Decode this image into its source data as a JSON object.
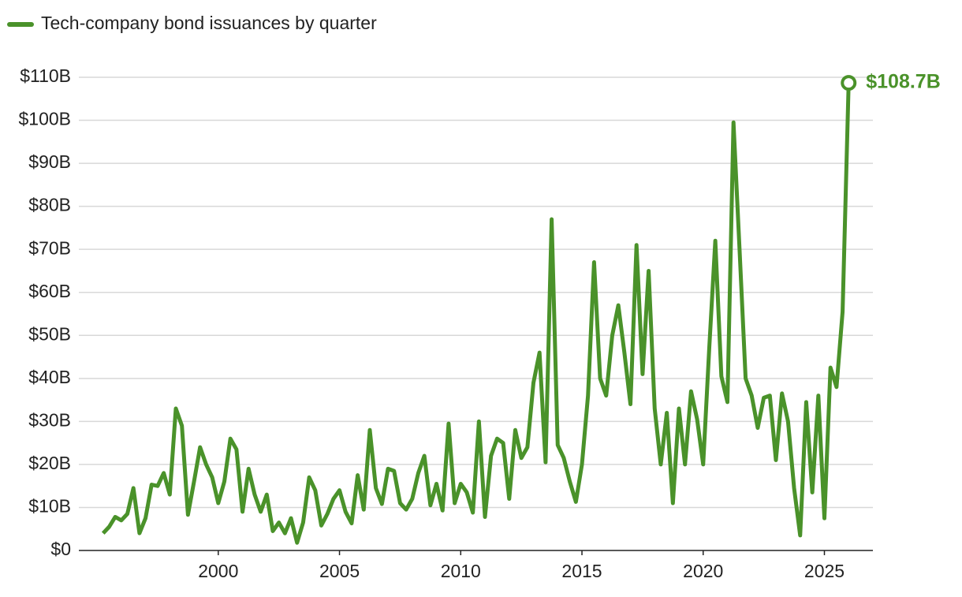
{
  "chart_data": {
    "type": "line",
    "x": [
      1995.25,
      1995.5,
      1995.75,
      1996,
      1996.25,
      1996.5,
      1996.75,
      1997,
      1997.25,
      1997.5,
      1997.75,
      1998,
      1998.25,
      1998.5,
      1998.75,
      1999,
      1999.25,
      1999.5,
      1999.75,
      2000,
      2000.25,
      2000.5,
      2000.75,
      2001,
      2001.25,
      2001.5,
      2001.75,
      2002,
      2002.25,
      2002.5,
      2002.75,
      2003,
      2003.25,
      2003.5,
      2003.75,
      2004,
      2004.25,
      2004.5,
      2004.75,
      2005,
      2005.25,
      2005.5,
      2005.75,
      2006,
      2006.25,
      2006.5,
      2006.75,
      2007,
      2007.25,
      2007.5,
      2007.75,
      2008,
      2008.25,
      2008.5,
      2008.75,
      2009,
      2009.25,
      2009.5,
      2009.75,
      2010,
      2010.25,
      2010.5,
      2010.75,
      2011,
      2011.25,
      2011.5,
      2011.75,
      2012,
      2012.25,
      2012.5,
      2012.75,
      2013,
      2013.25,
      2013.5,
      2013.75,
      2014,
      2014.25,
      2014.5,
      2014.75,
      2015,
      2015.25,
      2015.5,
      2015.75,
      2016,
      2016.25,
      2016.5,
      2016.75,
      2017,
      2017.25,
      2017.5,
      2017.75,
      2018,
      2018.25,
      2018.5,
      2018.75,
      2019,
      2019.25,
      2019.5,
      2019.75,
      2020,
      2020.25,
      2020.5,
      2020.75,
      2021,
      2021.25,
      2021.5,
      2021.75,
      2022,
      2022.25,
      2022.5,
      2022.75,
      2023,
      2023.25,
      2023.5,
      2023.75,
      2024,
      2024.25,
      2024.5,
      2024.75,
      2025,
      2025.25,
      2025.5,
      2025.75,
      2026
    ],
    "series": [
      {
        "name": "Tech-company bond issuances by quarter",
        "color": "#4a922a",
        "values": [
          4,
          5.5,
          7.8,
          7,
          8.5,
          14.5,
          4,
          7.5,
          15.3,
          15,
          18,
          13,
          33,
          29,
          8.3,
          16,
          24,
          20,
          17,
          11,
          16,
          26,
          23.5,
          9,
          19,
          13,
          9,
          13,
          4.5,
          6.5,
          4,
          7.5,
          1.8,
          6.5,
          17,
          14,
          5.8,
          8.5,
          12,
          14,
          9,
          6.3,
          17.5,
          9.5,
          28,
          14.5,
          10.8,
          19,
          18.5,
          11,
          9.5,
          12,
          18,
          22,
          10.5,
          15.5,
          9.3,
          29.5,
          11,
          15.5,
          13.5,
          8.8,
          30,
          7.8,
          22,
          26,
          25,
          12,
          28,
          21.5,
          24,
          39,
          46,
          20.5,
          77,
          24.5,
          21.5,
          16,
          11.3,
          20,
          36,
          67,
          40,
          36,
          50,
          57,
          46,
          34,
          71,
          41,
          65,
          33,
          20,
          32,
          11,
          33,
          20,
          37,
          30.5,
          20,
          47,
          72,
          40.5,
          34.5,
          99.5,
          70,
          40,
          36,
          28.5,
          35.5,
          36,
          21,
          36.5,
          30,
          14.5,
          3.5,
          34.5,
          13.5,
          36,
          7.5,
          42.5,
          38,
          55.5,
          108.7
        ],
        "value_labels": [
          null,
          null,
          null,
          null,
          null,
          null,
          null,
          null,
          null,
          null,
          null,
          null,
          null,
          null,
          null,
          null,
          null,
          null,
          null,
          null,
          null,
          null,
          null,
          null,
          null,
          null,
          null,
          null,
          null,
          null,
          null,
          null,
          null,
          null,
          null,
          null,
          null,
          null,
          null,
          null,
          null,
          null,
          null,
          null,
          null,
          null,
          null,
          null,
          null,
          null,
          null,
          null,
          null,
          null,
          null,
          null,
          null,
          null,
          null,
          null,
          null,
          null,
          null,
          null,
          null,
          null,
          null,
          null,
          null,
          null,
          null,
          null,
          null,
          null,
          null,
          null,
          null,
          null,
          null,
          null,
          null,
          null,
          null,
          null,
          null,
          null,
          null,
          null,
          null,
          null,
          null,
          null,
          null,
          null,
          null,
          null,
          null,
          null,
          null,
          null,
          null,
          null,
          null,
          null,
          null,
          null,
          null,
          null,
          null,
          null,
          null,
          null,
          null,
          null,
          null,
          null,
          null,
          null,
          null,
          null,
          null,
          null,
          null,
          "$108.7B"
        ]
      }
    ],
    "xlim": [
      1994.25,
      2027
    ],
    "xticks": [
      2000,
      2005,
      2010,
      2015,
      2020,
      2025
    ],
    "ylim": [
      0,
      110
    ],
    "yticks": [
      {
        "value": 0,
        "label": "$0"
      },
      {
        "value": 10,
        "label": "$10B"
      },
      {
        "value": 20,
        "label": "$20B"
      },
      {
        "value": 30,
        "label": "$30B"
      },
      {
        "value": 40,
        "label": "$40B"
      },
      {
        "value": 50,
        "label": "$50B"
      },
      {
        "value": 60,
        "label": "$60B"
      },
      {
        "value": 70,
        "label": "$70B"
      },
      {
        "value": 80,
        "label": "$80B"
      },
      {
        "value": 90,
        "label": "$90B"
      },
      {
        "value": 100,
        "label": "$100B"
      },
      {
        "value": 110,
        "label": "$110B"
      }
    ],
    "grid": true,
    "legend": "top-left"
  }
}
